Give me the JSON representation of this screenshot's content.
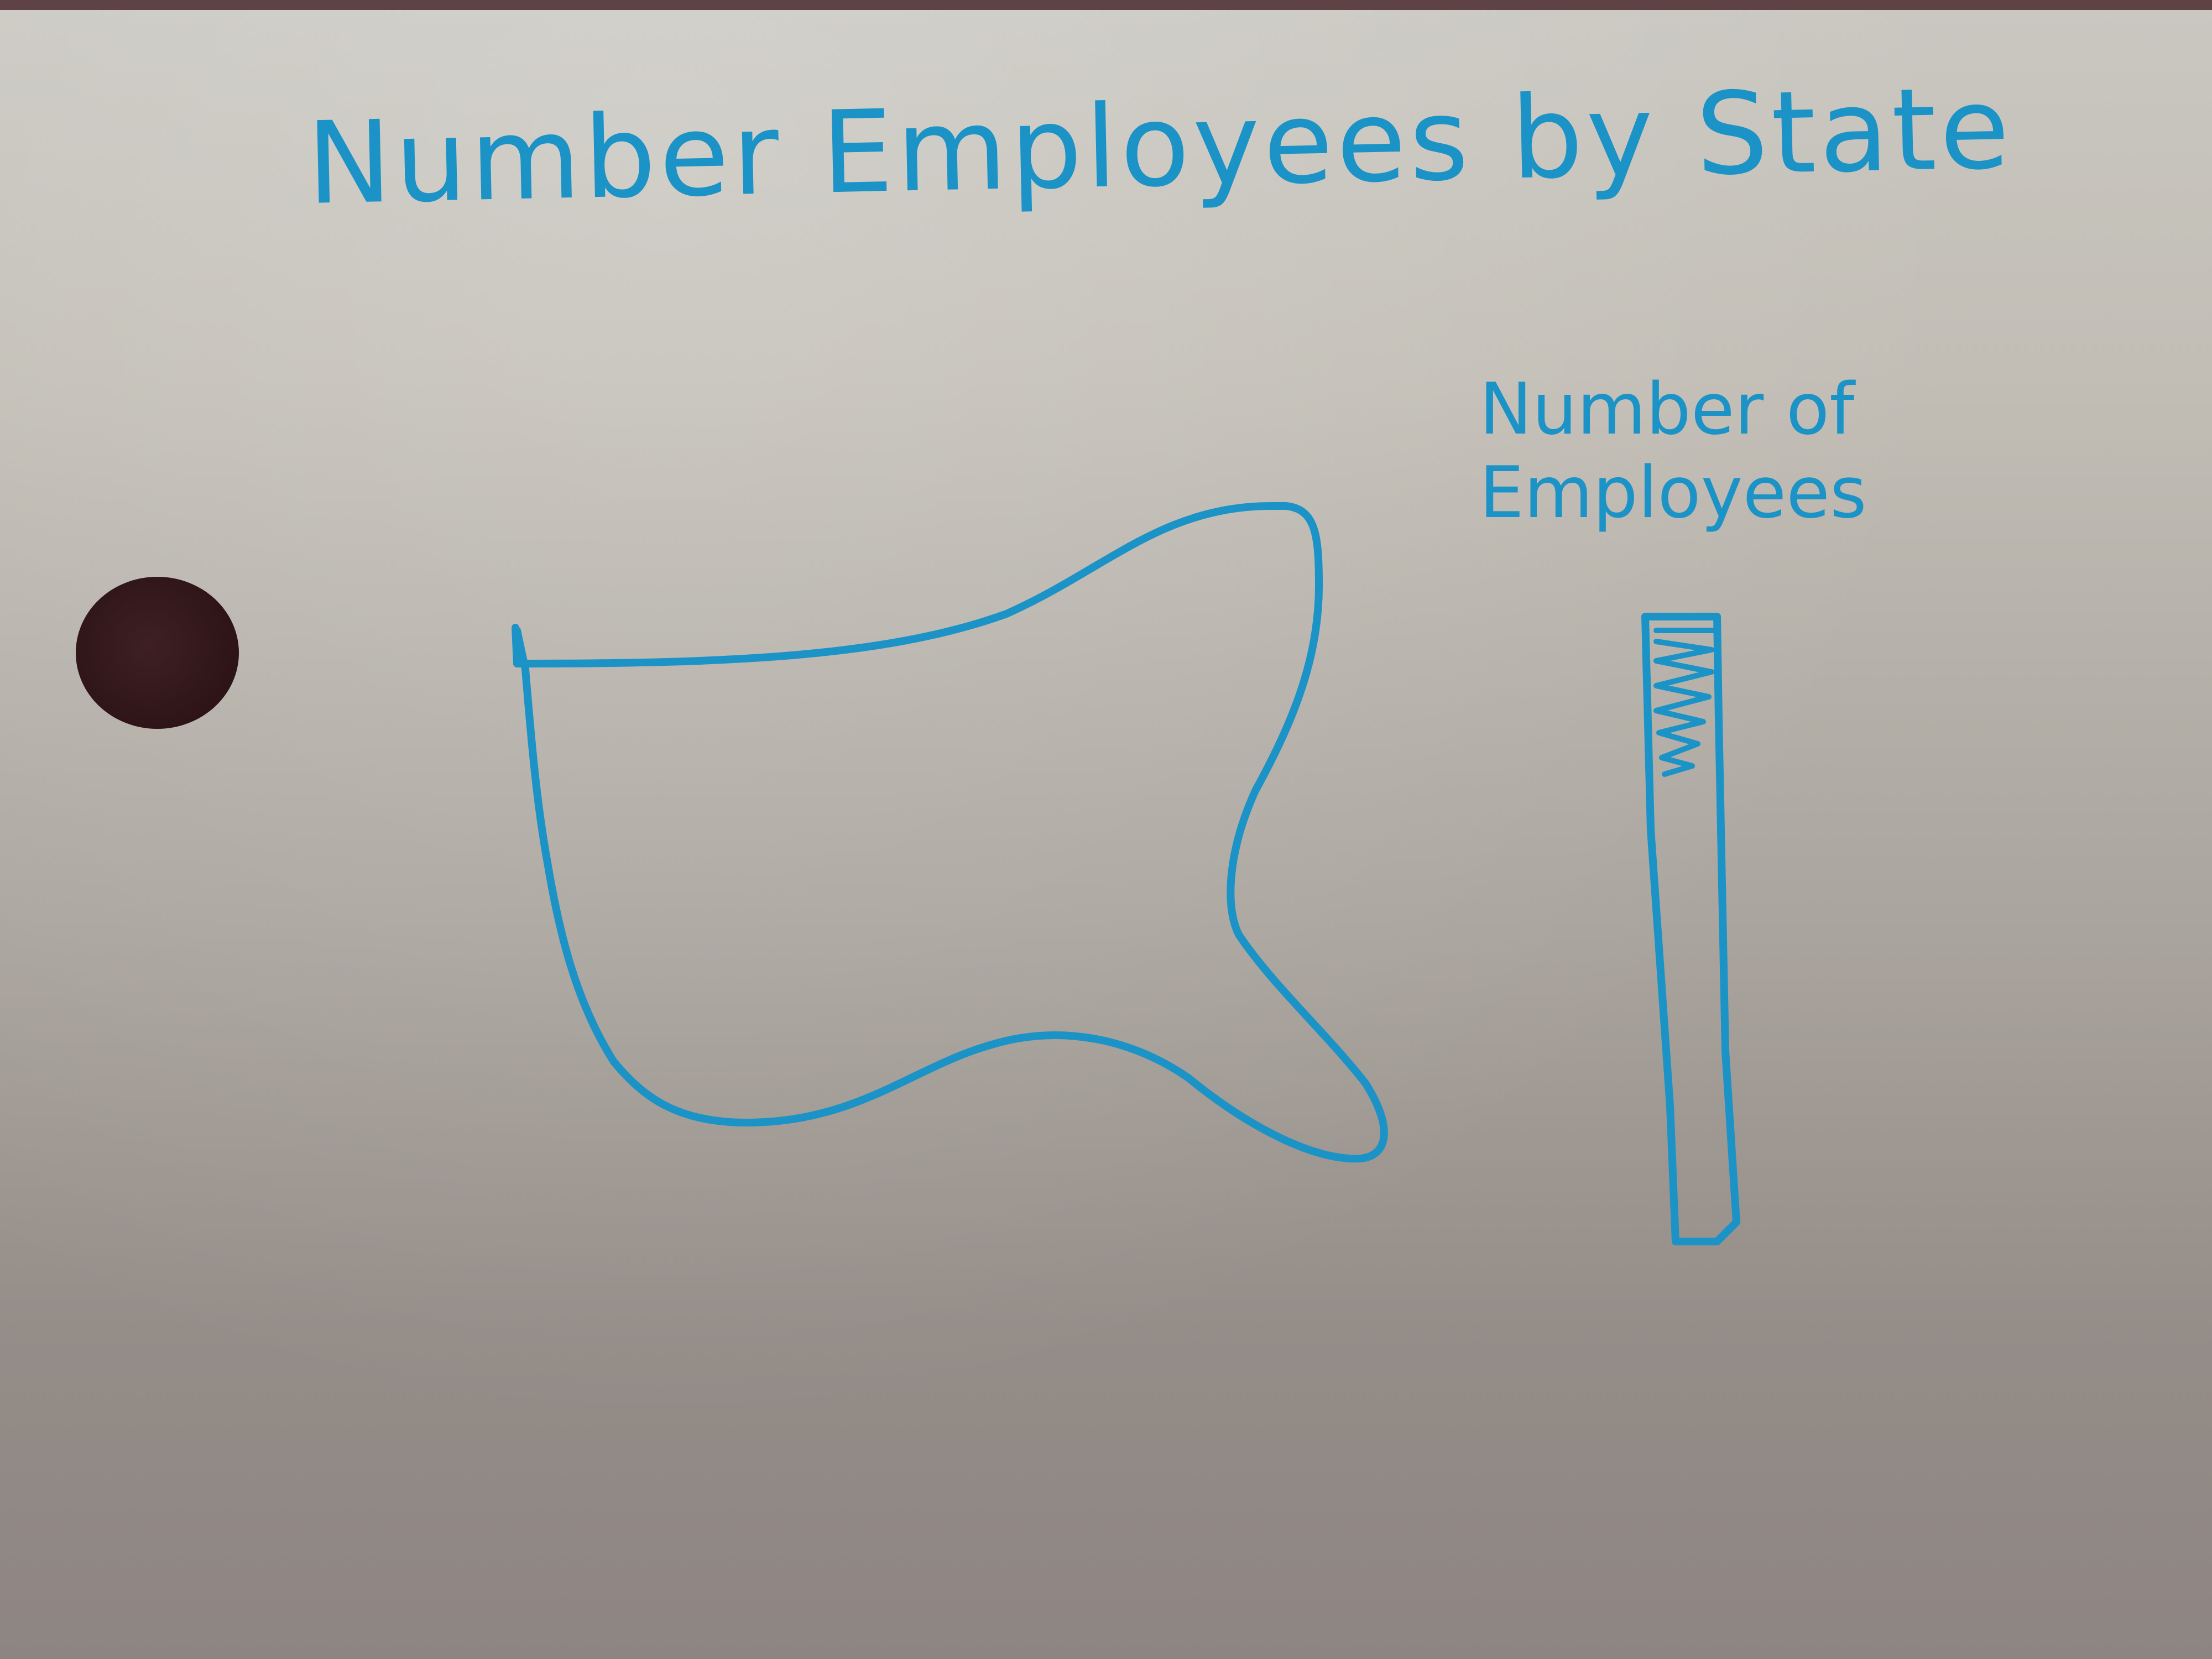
{
  "sketch": {
    "title": "Number Employees by State",
    "legend": {
      "title": "Number of Employees"
    }
  },
  "colors": {
    "ink": "#1b93c6",
    "paper": "#c4c1b9",
    "background": "#5e4244"
  }
}
